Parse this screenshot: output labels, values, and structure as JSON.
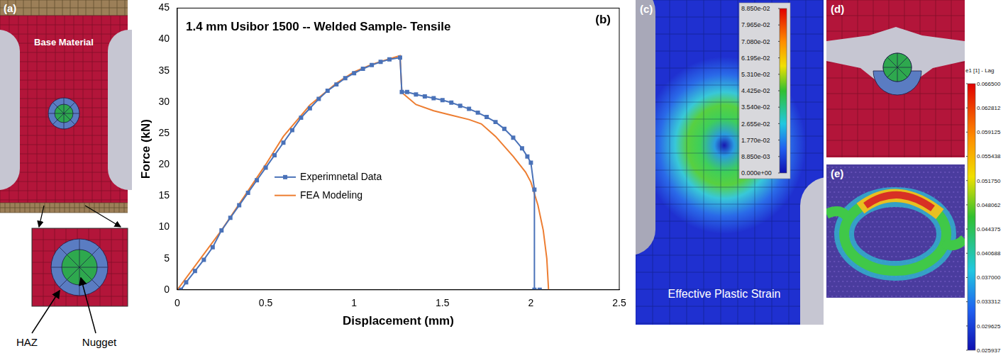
{
  "chart_data": {
    "type": "line",
    "title": "1.4 mm Usibor 1500 -- Welded Sample- Tensile",
    "annotations": [
      "(b)"
    ],
    "x_label": "Displacement (mm)",
    "y_label": "Force (kN)",
    "xlim": [
      0,
      2.5
    ],
    "xticks": [
      0,
      0.5,
      1,
      1.5,
      2,
      2.5
    ],
    "ylim": [
      0,
      45
    ],
    "yticks": [
      0,
      5,
      10,
      15,
      20,
      25,
      30,
      35,
      40,
      45
    ],
    "grid": false,
    "legend": "left",
    "series": [
      {
        "name": "Experimnetal Data",
        "color": "#4a72b8",
        "marker": "square",
        "line_style": "solid",
        "x": [
          0.02,
          0.05,
          0.1,
          0.15,
          0.2,
          0.25,
          0.3,
          0.35,
          0.4,
          0.45,
          0.5,
          0.55,
          0.6,
          0.65,
          0.7,
          0.75,
          0.8,
          0.85,
          0.9,
          0.95,
          1.0,
          1.05,
          1.1,
          1.15,
          1.2,
          1.26,
          1.27,
          1.3,
          1.35,
          1.4,
          1.45,
          1.5,
          1.55,
          1.6,
          1.65,
          1.7,
          1.75,
          1.8,
          1.85,
          1.9,
          1.95,
          1.98,
          2.0,
          2.02,
          2.02,
          2.05
        ],
        "values": [
          0,
          1.2,
          3,
          4.8,
          6.8,
          9.5,
          11.5,
          13.5,
          15.5,
          17.5,
          19.5,
          21.5,
          23.5,
          25.5,
          27.5,
          29,
          30.5,
          31.8,
          32.8,
          33.8,
          34.6,
          35.3,
          35.9,
          36.4,
          36.8,
          37.1,
          31.6,
          31.6,
          31.2,
          30.9,
          30.6,
          30.3,
          29.9,
          29.4,
          28.9,
          28.3,
          27.6,
          26.8,
          25.7,
          24.3,
          22.6,
          21.3,
          20.3,
          16,
          0,
          0
        ]
      },
      {
        "name": "FEA Modeling",
        "color": "#ed7d31",
        "marker": "none",
        "line_style": "solid",
        "x": [
          0,
          0.25,
          0.5,
          0.6,
          0.75,
          0.9,
          1.0,
          1.1,
          1.2,
          1.26,
          1.27,
          1.35,
          1.45,
          1.55,
          1.65,
          1.72,
          1.8,
          1.9,
          1.97,
          2.0,
          2.04,
          2.07,
          2.09,
          2.1
        ],
        "values": [
          0,
          9.5,
          20,
          24.5,
          29.5,
          33,
          34.8,
          36,
          36.9,
          37.4,
          31.5,
          29.6,
          28.6,
          27.9,
          27.2,
          26.5,
          24.5,
          21.3,
          18.8,
          17.2,
          13.5,
          9.5,
          5,
          0
        ]
      }
    ]
  },
  "panels": {
    "a": {
      "label": "(a)",
      "title": "Base Material",
      "callouts": [
        "HAZ",
        "Nugget"
      ]
    },
    "c": {
      "label": "(c)",
      "caption": "Effective Plastic Strain",
      "colorbar_ticks": [
        {
          "value": 0.0885,
          "label": "8.850e-02"
        },
        {
          "value": 0.07965,
          "label": "7.965e-02"
        },
        {
          "value": 0.0708,
          "label": "7.080e-02"
        },
        {
          "value": 0.06195,
          "label": "6.195e-02"
        },
        {
          "value": 0.0531,
          "label": "5.310e-02"
        },
        {
          "value": 0.04425,
          "label": "4.425e-02"
        },
        {
          "value": 0.0354,
          "label": "3.540e-02"
        },
        {
          "value": 0.02655,
          "label": "2.655e-02"
        },
        {
          "value": 0.0177,
          "label": "1.770e-02"
        },
        {
          "value": 0.00885,
          "label": "8.850e-03"
        },
        {
          "value": 0,
          "label": "0.000e+00"
        }
      ]
    },
    "d": {
      "label": "(d)"
    },
    "e": {
      "label": "(e)",
      "colorbar_title": "e1 [1] - Lag",
      "colorbar_ticks": [
        {
          "value": 0.0665,
          "label": "0.066500"
        },
        {
          "value": 0.062812,
          "label": "0.062812"
        },
        {
          "value": 0.059125,
          "label": "0.059125"
        },
        {
          "value": 0.055438,
          "label": "0.055438"
        },
        {
          "value": 0.05175,
          "label": "0.051750"
        },
        {
          "value": 0.048062,
          "label": "0.048062"
        },
        {
          "value": 0.044375,
          "label": "0.044375"
        },
        {
          "value": 0.040688,
          "label": "0.040688"
        },
        {
          "value": 0.037,
          "label": "0.037000"
        },
        {
          "value": 0.033312,
          "label": "0.033312"
        },
        {
          "value": 0.029625,
          "label": "0.029625"
        },
        {
          "value": 0.025937,
          "label": "0.025937"
        }
      ]
    }
  }
}
